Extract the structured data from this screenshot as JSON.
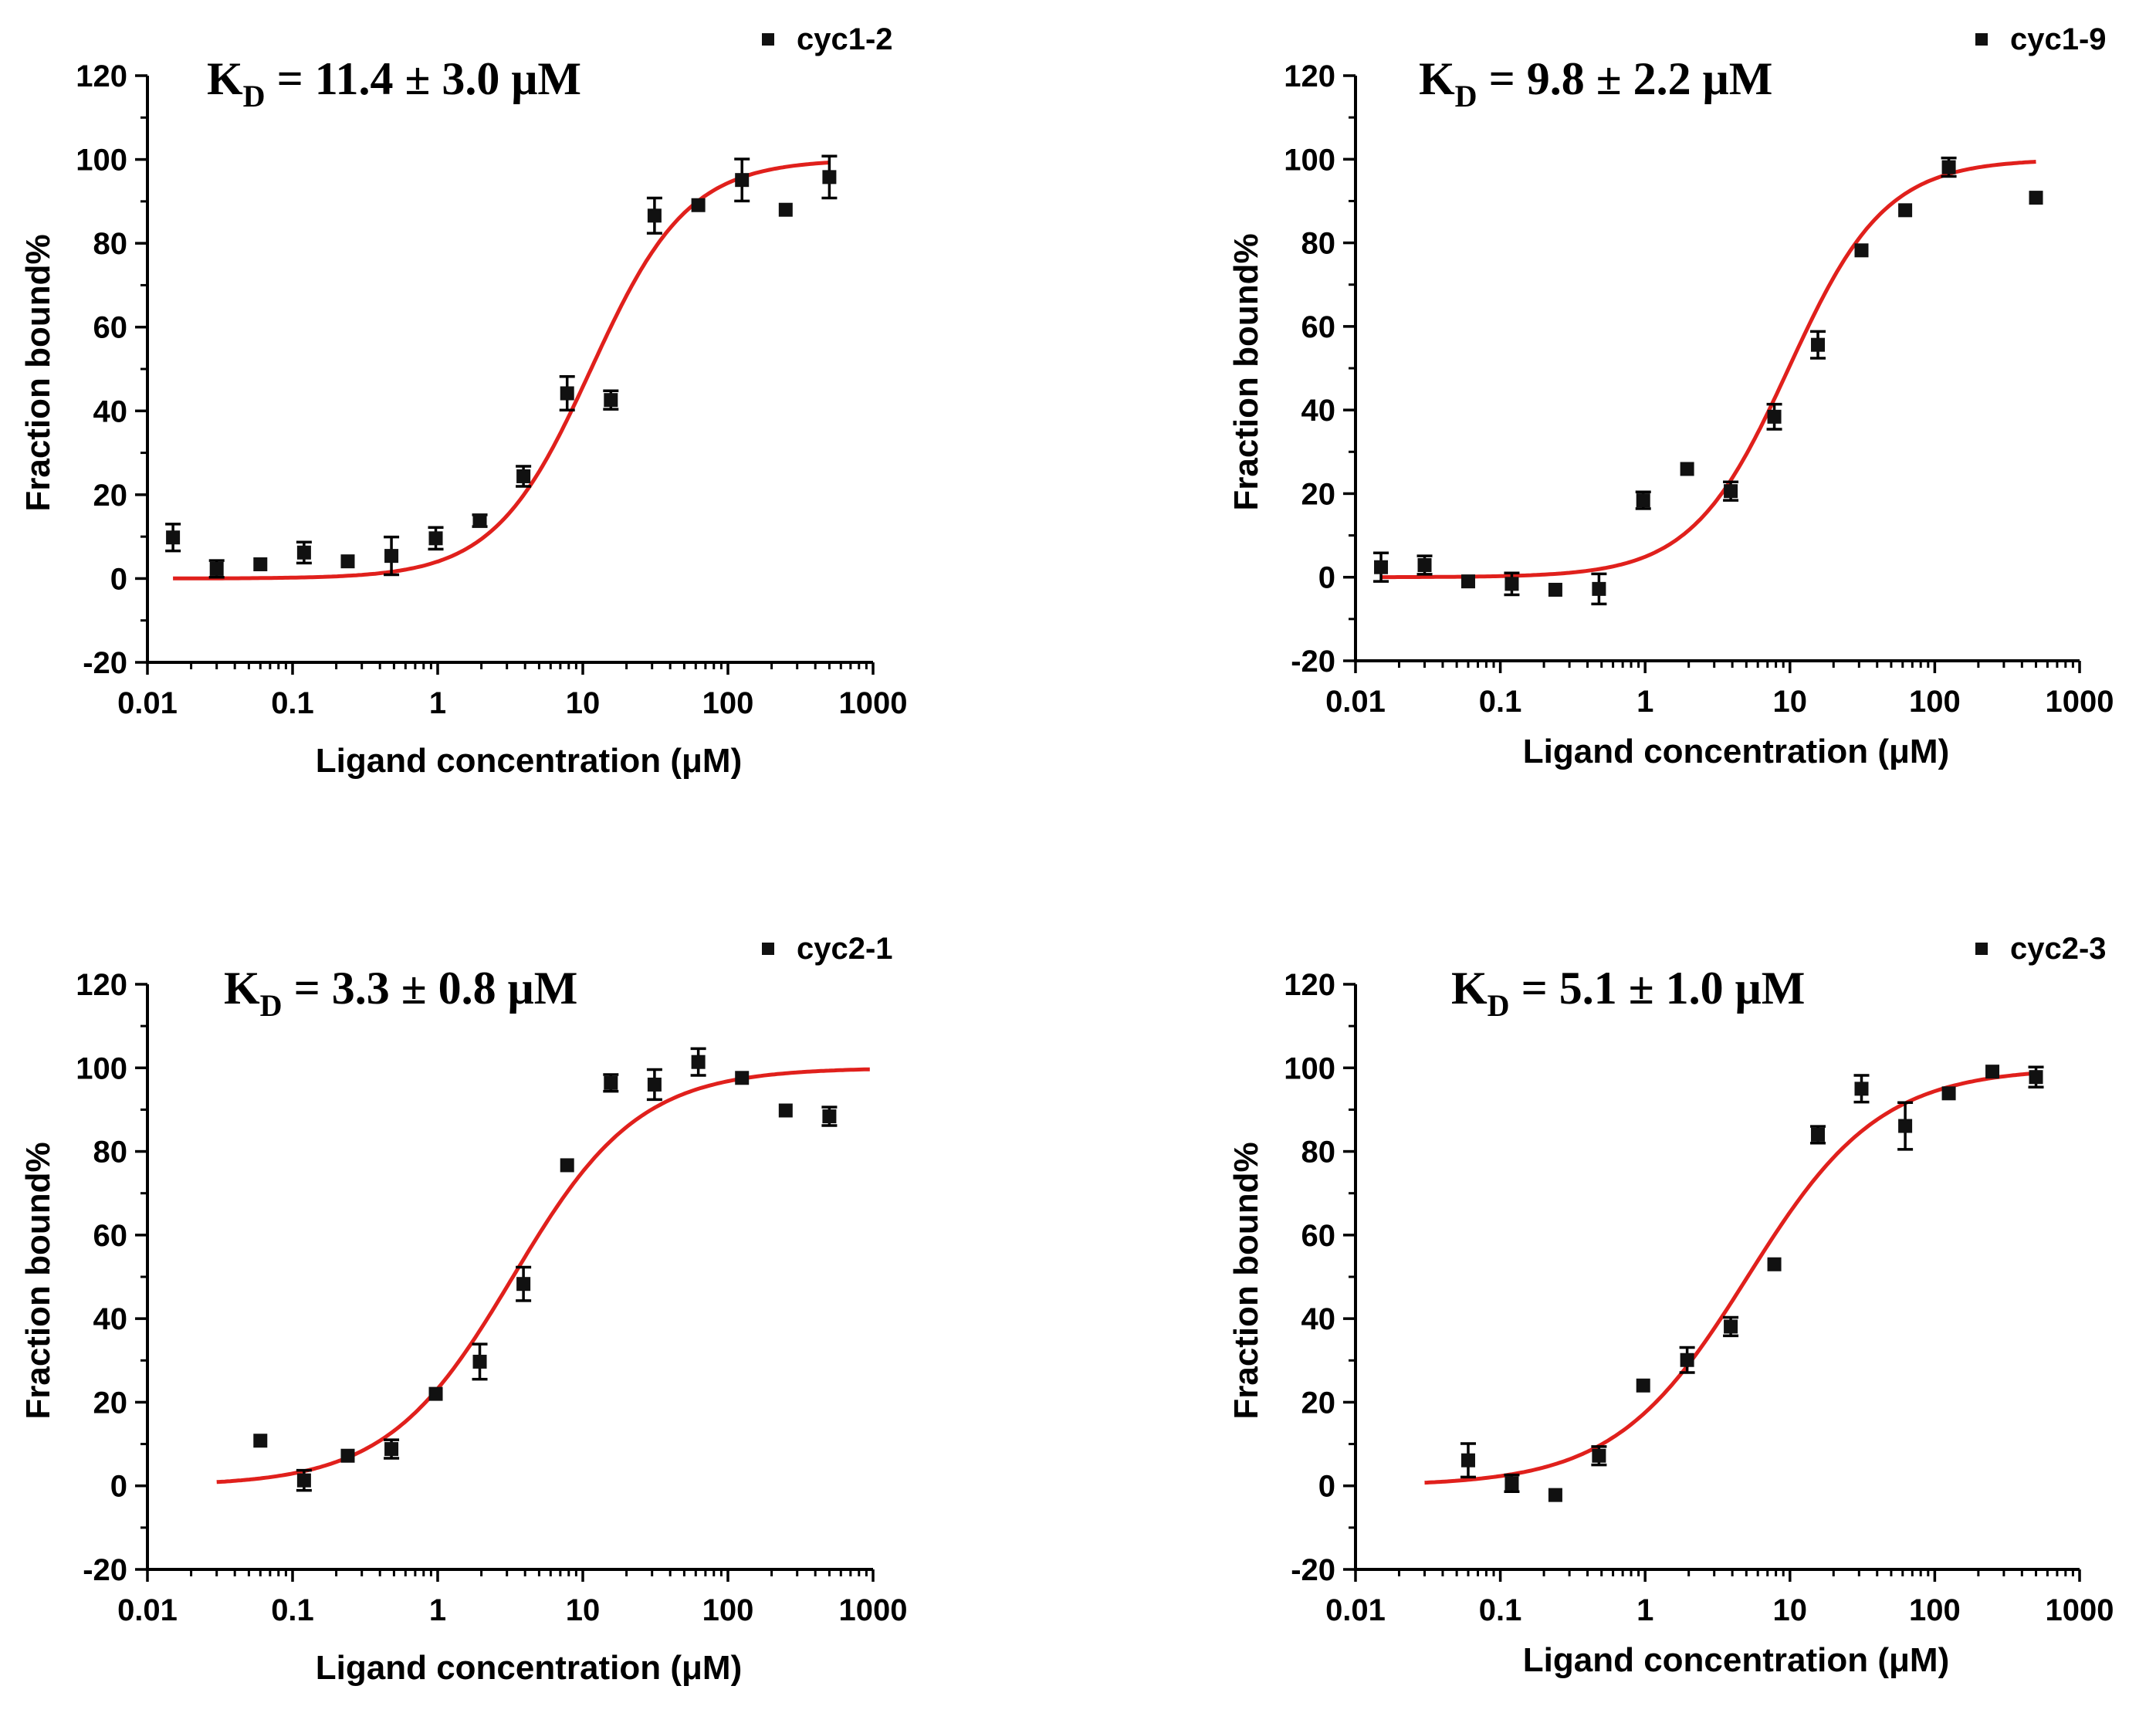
{
  "figure": {
    "colors": {
      "marker": "#111111",
      "fit": "#e0201c",
      "axis": "#000000"
    }
  },
  "chart_data": [
    {
      "type": "scatter",
      "title": "",
      "legend": "cyc1-2",
      "kd": {
        "symbol": "K",
        "subscript": "D",
        "text": " = 11.4 ± 3.0 μM"
      },
      "xlabel": "Ligand concentration (μM)",
      "ylabel": "Fraction bound%",
      "xscale": "log",
      "xlim": [
        0.01,
        1000
      ],
      "ylim": [
        -20,
        120
      ],
      "xticks": [
        "0.01",
        "0.1",
        "1",
        "10",
        "100",
        "1000"
      ],
      "yticks": [
        "-20",
        "0",
        "20",
        "40",
        "60",
        "80",
        "100",
        "120"
      ],
      "fit": {
        "model": "hill",
        "Kd": 11.4,
        "n": 1.3,
        "top": 100,
        "bottom": 0,
        "xrange": [
          0.015,
          500
        ]
      },
      "points": [
        {
          "x": 0.015,
          "y": 9.8,
          "err": 3.2
        },
        {
          "x": 0.03,
          "y": 2.3,
          "err": 2.0
        },
        {
          "x": 0.06,
          "y": 3.4,
          "err": 1.2
        },
        {
          "x": 0.12,
          "y": 6.2,
          "err": 2.5
        },
        {
          "x": 0.24,
          "y": 4.1,
          "err": 1.2
        },
        {
          "x": 0.48,
          "y": 5.4,
          "err": 4.5
        },
        {
          "x": 0.97,
          "y": 9.6,
          "err": 2.6
        },
        {
          "x": 1.95,
          "y": 13.8,
          "err": 1.4
        },
        {
          "x": 3.9,
          "y": 24.4,
          "err": 2.4
        },
        {
          "x": 7.8,
          "y": 44.2,
          "err": 4.0
        },
        {
          "x": 15.6,
          "y": 42.6,
          "err": 2.2
        },
        {
          "x": 31.2,
          "y": 86.6,
          "err": 4.2
        },
        {
          "x": 62.5,
          "y": 89.1,
          "err": 1.2
        },
        {
          "x": 125,
          "y": 95.1,
          "err": 5.0
        },
        {
          "x": 250,
          "y": 88.0,
          "err": 1.2
        },
        {
          "x": 500,
          "y": 95.8,
          "err": 5.0
        }
      ]
    },
    {
      "type": "scatter",
      "title": "",
      "legend": "cyc1-9",
      "kd": {
        "symbol": "K",
        "subscript": "D",
        "text": " = 9.8 ± 2.2 μM"
      },
      "xlabel": "Ligand concentration (μM)",
      "ylabel": "Fraction bound%",
      "xscale": "log",
      "xlim": [
        0.01,
        1000
      ],
      "ylim": [
        -20,
        120
      ],
      "xticks": [
        "0.01",
        "0.1",
        "1",
        "10",
        "100",
        "1000"
      ],
      "yticks": [
        "-20",
        "0",
        "20",
        "40",
        "60",
        "80",
        "100",
        "120"
      ],
      "fit": {
        "model": "hill",
        "Kd": 9.8,
        "n": 1.3,
        "top": 100,
        "bottom": 0,
        "xrange": [
          0.015,
          500
        ]
      },
      "points": [
        {
          "x": 0.015,
          "y": 2.4,
          "err": 3.4
        },
        {
          "x": 0.03,
          "y": 2.9,
          "err": 2.2
        },
        {
          "x": 0.06,
          "y": -1.0,
          "err": 1.0
        },
        {
          "x": 0.12,
          "y": -1.6,
          "err": 2.6
        },
        {
          "x": 0.24,
          "y": -3.0,
          "err": 1.0
        },
        {
          "x": 0.48,
          "y": -2.8,
          "err": 3.6
        },
        {
          "x": 0.97,
          "y": 18.4,
          "err": 2.0
        },
        {
          "x": 1.95,
          "y": 25.9,
          "err": 1.0
        },
        {
          "x": 3.9,
          "y": 20.6,
          "err": 2.2
        },
        {
          "x": 7.8,
          "y": 38.4,
          "err": 3.0
        },
        {
          "x": 15.6,
          "y": 55.6,
          "err": 3.2
        },
        {
          "x": 31.2,
          "y": 78.2,
          "err": 1.0
        },
        {
          "x": 62.5,
          "y": 87.8,
          "err": 1.0
        },
        {
          "x": 125,
          "y": 98.1,
          "err": 2.2
        },
        {
          "x": 500,
          "y": 90.8,
          "err": 1.0
        }
      ]
    },
    {
      "type": "scatter",
      "title": "",
      "legend": "cyc2-1",
      "kd": {
        "symbol": "K",
        "subscript": "D",
        "text": " = 3.3 ± 0.8 μM"
      },
      "xlabel": "Ligand concentration (μM)",
      "ylabel": "Fraction bound%",
      "xscale": "log",
      "xlim": [
        0.01,
        1000
      ],
      "ylim": [
        -20,
        120
      ],
      "xticks": [
        "0.01",
        "0.1",
        "1",
        "10",
        "100",
        "1000"
      ],
      "yticks": [
        "-20",
        "0",
        "20",
        "40",
        "60",
        "80",
        "100",
        "120"
      ],
      "fit": {
        "model": "hill",
        "Kd": 3.3,
        "n": 1.0,
        "top": 100,
        "bottom": 0,
        "xrange": [
          0.03,
          950
        ]
      },
      "points": [
        {
          "x": 0.06,
          "y": 10.8,
          "err": 1.0
        },
        {
          "x": 0.12,
          "y": 1.3,
          "err": 2.4
        },
        {
          "x": 0.24,
          "y": 7.2,
          "err": 1.0
        },
        {
          "x": 0.48,
          "y": 8.8,
          "err": 2.2
        },
        {
          "x": 0.97,
          "y": 22.0,
          "err": 1.0
        },
        {
          "x": 1.95,
          "y": 29.7,
          "err": 4.2
        },
        {
          "x": 3.9,
          "y": 48.3,
          "err": 4.0
        },
        {
          "x": 7.8,
          "y": 76.7,
          "err": 1.0
        },
        {
          "x": 15.6,
          "y": 96.4,
          "err": 2.0
        },
        {
          "x": 31.2,
          "y": 96.0,
          "err": 3.6
        },
        {
          "x": 62.5,
          "y": 101.4,
          "err": 3.2
        },
        {
          "x": 125,
          "y": 97.6,
          "err": 1.0
        },
        {
          "x": 250,
          "y": 89.8,
          "err": 1.0
        },
        {
          "x": 500,
          "y": 88.4,
          "err": 2.2
        }
      ]
    },
    {
      "type": "scatter",
      "title": "",
      "legend": "cyc2-3",
      "kd": {
        "symbol": "K",
        "subscript": "D",
        "text": " = 5.1 ± 1.0 μM"
      },
      "xlabel": "Ligand concentration (μM)",
      "ylabel": "Fraction bound%",
      "xscale": "log",
      "xlim": [
        0.01,
        1000
      ],
      "ylim": [
        -20,
        120
      ],
      "xticks": [
        "0.01",
        "0.1",
        "1",
        "10",
        "100",
        "1000"
      ],
      "yticks": [
        "-20",
        "0",
        "20",
        "40",
        "60",
        "80",
        "100",
        "120"
      ],
      "fit": {
        "model": "hill",
        "Kd": 5.1,
        "n": 0.95,
        "top": 100,
        "bottom": 0,
        "xrange": [
          0.03,
          500
        ]
      },
      "points": [
        {
          "x": 0.06,
          "y": 6.1,
          "err": 4.0
        },
        {
          "x": 0.12,
          "y": 0.6,
          "err": 2.0
        },
        {
          "x": 0.24,
          "y": -2.2,
          "err": 1.0
        },
        {
          "x": 0.48,
          "y": 7.2,
          "err": 2.2
        },
        {
          "x": 0.97,
          "y": 24.0,
          "err": 1.0
        },
        {
          "x": 1.95,
          "y": 30.1,
          "err": 3.0
        },
        {
          "x": 3.9,
          "y": 38.1,
          "err": 2.2
        },
        {
          "x": 7.8,
          "y": 53.0,
          "err": 1.0
        },
        {
          "x": 15.6,
          "y": 84.0,
          "err": 2.0
        },
        {
          "x": 31.2,
          "y": 95.0,
          "err": 3.2
        },
        {
          "x": 62.5,
          "y": 86.1,
          "err": 5.6
        },
        {
          "x": 125,
          "y": 93.9,
          "err": 1.0
        },
        {
          "x": 250,
          "y": 99.1,
          "err": 1.0
        },
        {
          "x": 500,
          "y": 97.8,
          "err": 2.4
        }
      ]
    }
  ]
}
